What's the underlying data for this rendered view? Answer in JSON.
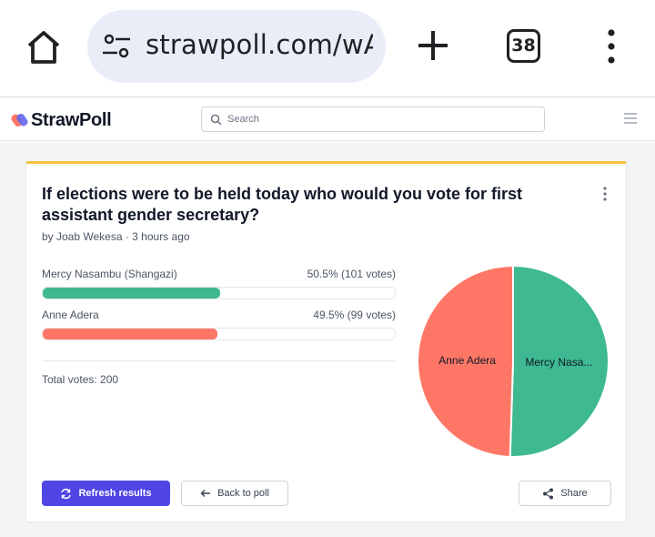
{
  "browser": {
    "url": "strawpoll.com/wAg",
    "tab_count": "38"
  },
  "site": {
    "logo_text": "StrawPoll",
    "search_placeholder": "Search"
  },
  "poll": {
    "title": "If elections were to be held today who would you vote for first assistant gender secretary?",
    "byline": "by Joab Wekesa · 3 hours ago",
    "options": [
      {
        "name": "Mercy Nasambu (Shangazi)",
        "result": "50.5% (101 votes)",
        "fraction": 0.505,
        "color": "#3eb991"
      },
      {
        "name": "Anne Adera",
        "result": "49.5% (99 votes)",
        "fraction": 0.495,
        "color": "#fe7766"
      }
    ],
    "total_votes": "Total votes: 200"
  },
  "chart_data": {
    "type": "pie",
    "categories": [
      "Mercy Nasa...",
      "Anne Adera"
    ],
    "values": [
      101,
      99
    ],
    "colors": [
      "#3eb991",
      "#fe7766"
    ]
  },
  "actions": {
    "refresh": "Refresh results",
    "back": "Back to poll",
    "share": "Share"
  }
}
